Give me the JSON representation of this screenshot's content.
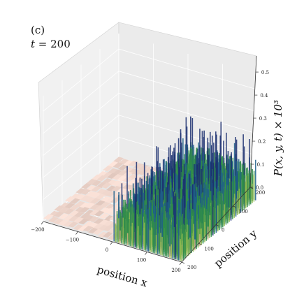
{
  "panel": {
    "label": "(c)",
    "time_var": "t",
    "time_eq": " = ",
    "time_value": "200"
  },
  "chart_data": {
    "type": "surface3d",
    "xlabel": "position x",
    "ylabel": "position y",
    "zlabel": "P(x, y, t) × 10³",
    "x_ticks": [
      "−200",
      "−100",
      "0",
      "100",
      "200"
    ],
    "y_ticks": [
      "200",
      "100",
      "0",
      "100",
      "200"
    ],
    "z_ticks": [
      "0.0",
      "0.1",
      "0.2",
      "0.3",
      "0.4",
      "0.5"
    ],
    "xlim": [
      -200,
      200
    ],
    "ylim": [
      -200,
      200
    ],
    "zlim": [
      0,
      0.57
    ],
    "regions": [
      {
        "name": "low flat region",
        "x_range": [
          -200,
          0
        ],
        "y_range": [
          -200,
          200
        ],
        "height": 0.01,
        "color": "#e8c8bf"
      },
      {
        "name": "high noisy region",
        "x_range": [
          0,
          200
        ],
        "y_range": [
          -200,
          200
        ],
        "height_mean": 0.12,
        "height_max": 0.3,
        "colormap": [
          "#d2b07a",
          "#8cb850",
          "#2f8c4a",
          "#1f5f8a",
          "#1b2f70"
        ]
      }
    ],
    "grid": true,
    "background_panes": [
      "#f2f2f2",
      "#ececec"
    ]
  }
}
